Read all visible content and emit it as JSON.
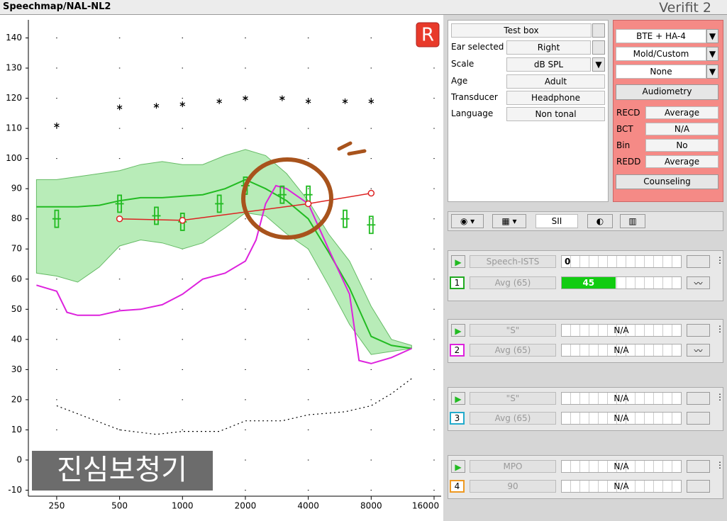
{
  "header": {
    "title": "Speechmap/NAL-NL2",
    "brand": "Verifit 2"
  },
  "badge": "R",
  "watermark": "진심보청기",
  "chart_data": {
    "type": "line",
    "xscale": "log",
    "xlim": [
      183,
      17300
    ],
    "ylim": [
      -12,
      146
    ],
    "xticks": [
      250,
      500,
      1000,
      2000,
      4000,
      8000,
      16000
    ],
    "yticks": [
      140,
      130,
      120,
      110,
      100,
      90,
      80,
      70,
      60,
      50,
      40,
      30,
      20,
      10,
      0,
      -10
    ],
    "grid": "dots",
    "series": [
      {
        "style": "band",
        "color": "#b8ecb8",
        "x": [
          200,
          250,
          315,
          400,
          500,
          630,
          800,
          1000,
          1250,
          1600,
          2000,
          2500,
          3150,
          4000,
          5000,
          6300,
          8000,
          10000,
          12500
        ],
        "upper": [
          93,
          93,
          94,
          95,
          96,
          98,
          99,
          98,
          98,
          101,
          103,
          101,
          95,
          86,
          75,
          66,
          51,
          40,
          38
        ],
        "lower": [
          62,
          61,
          59,
          64,
          71,
          73,
          72,
          70,
          72,
          77,
          82,
          81,
          75,
          70,
          58,
          45,
          35,
          36,
          37
        ]
      },
      {
        "style": "line",
        "color": "#22bb22",
        "x": [
          200,
          250,
          315,
          400,
          500,
          630,
          800,
          1000,
          1250,
          1600,
          2000,
          2500,
          3150,
          4000,
          5000,
          6300,
          8000,
          10000,
          12500
        ],
        "values": [
          84,
          84,
          84,
          84.5,
          86,
          87,
          87,
          87.5,
          88,
          90,
          93,
          90,
          86,
          80,
          69,
          57,
          41,
          38,
          37
        ]
      },
      {
        "style": "line",
        "color": "#dd22dd",
        "x": [
          200,
          250,
          280,
          315,
          400,
          500,
          630,
          800,
          1000,
          1250,
          1600,
          2000,
          2250,
          2500,
          2800,
          3150,
          4000,
          5000,
          6300,
          7000,
          8000,
          10000,
          12500
        ],
        "values": [
          58,
          56,
          49,
          48,
          48,
          49.5,
          50,
          51.5,
          55,
          60,
          62,
          66,
          73,
          85,
          91,
          90,
          85,
          70,
          55,
          33,
          32,
          34,
          37
        ]
      },
      {
        "style": "dotted",
        "color": "#000000",
        "x": [
          250,
          500,
          750,
          1000,
          1500,
          2000,
          3000,
          4000,
          6000,
          8000,
          10000,
          12500
        ],
        "values": [
          18,
          10,
          8.5,
          9.5,
          9.5,
          13,
          13,
          15,
          16,
          18,
          22,
          27
        ]
      },
      {
        "style": "asterisk",
        "color": "#000000",
        "x": [
          250,
          500,
          750,
          1000,
          1500,
          2000,
          3000,
          4000,
          6000,
          8000
        ],
        "values": [
          111,
          117,
          117.5,
          118,
          119,
          120,
          120,
          119,
          119,
          119
        ]
      },
      {
        "style": "target",
        "color": "#22bb22",
        "x": [
          250,
          500,
          750,
          1000,
          1500,
          2000,
          3000,
          4000,
          6000,
          8000
        ],
        "values": [
          80,
          85,
          81,
          79,
          85,
          91,
          88,
          88,
          80,
          78
        ]
      },
      {
        "style": "circle-line",
        "color": "#dd2222",
        "x": [
          500,
          1000,
          4000,
          8000
        ],
        "values": [
          80,
          79.5,
          85,
          88.5
        ]
      }
    ]
  },
  "setup": {
    "test": "Test box",
    "rows": [
      [
        "Ear selected",
        "Right"
      ],
      [
        "Scale",
        "dB SPL"
      ],
      [
        "Age",
        "Adult"
      ],
      [
        "Transducer",
        "Headphone"
      ],
      [
        "Language",
        "Non tonal"
      ]
    ]
  },
  "hearing_aid": {
    "dropdowns": [
      "BTE + HA-4",
      "Mold/Custom",
      "None"
    ],
    "audiometry": "Audiometry",
    "rows": [
      [
        "RECD",
        "Average"
      ],
      [
        "BCT",
        "N/A"
      ],
      [
        "Bin",
        "No"
      ],
      [
        "REDD",
        "Average"
      ]
    ],
    "counseling": "Counseling"
  },
  "toolbar": {
    "sii": "SII"
  },
  "tests": [
    {
      "stimulus": "Speech-ISTS",
      "stimulus_value": 0,
      "number": "1",
      "color": "#22aa22",
      "level": "Avg (65)",
      "result": 45
    },
    {
      "stimulus": "\"S\"",
      "stimulus_value": "N/A",
      "number": "2",
      "color": "#dd22dd",
      "level": "Avg (65)",
      "result": "N/A"
    },
    {
      "stimulus": "\"S\"",
      "stimulus_value": "N/A",
      "number": "3",
      "color": "#22aacc",
      "level": "Avg (65)",
      "result": "N/A"
    },
    {
      "stimulus": "MPO",
      "stimulus_value": "N/A",
      "number": "4",
      "color": "#ee9922",
      "level": "90",
      "result": "N/A"
    }
  ]
}
